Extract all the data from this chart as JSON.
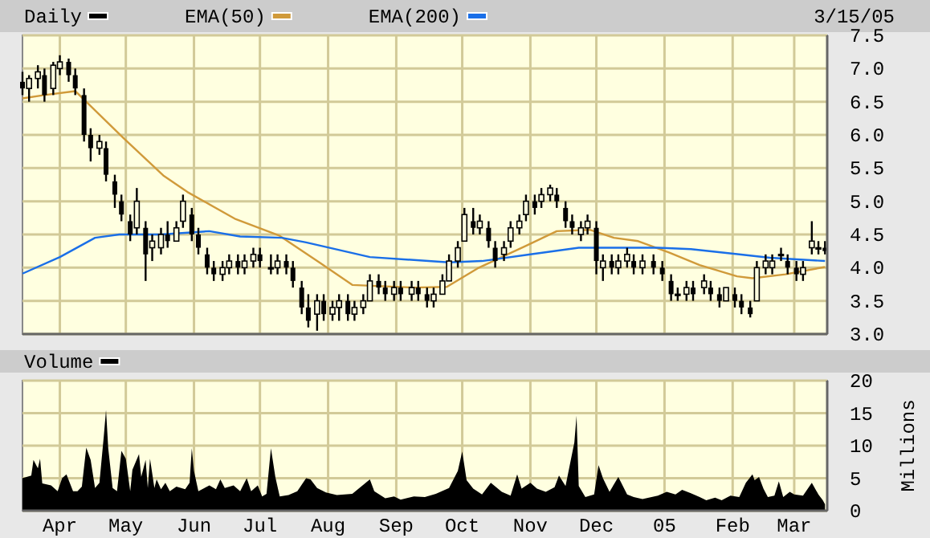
{
  "chart_data": [
    {
      "type": "candlestick",
      "xlim": [
        "2004-03-15",
        "2005-03-16"
      ],
      "xticks": [
        "2004-04-01",
        "2004-05-01",
        "2004-06-01",
        "2004-07-01",
        "2004-08-01",
        "2004-09-01",
        "2004-10-01",
        "2004-11-01",
        "2004-12-01",
        "2005-01-01",
        "2005-02-01",
        "2005-03-01"
      ],
      "ylim": [
        3,
        7.5
      ],
      "yticks": [
        {
          "value": 3,
          "label": "3.0"
        },
        {
          "value": 3.5,
          "label": "3.5"
        },
        {
          "value": 4,
          "label": "4.0"
        },
        {
          "value": 4.5,
          "label": "4.5"
        },
        {
          "value": 5,
          "label": "5.0"
        },
        {
          "value": 5.5,
          "label": "5.5"
        },
        {
          "value": 6,
          "label": "6.0"
        },
        {
          "value": 6.5,
          "label": "6.5"
        },
        {
          "value": 7,
          "label": "7.0"
        },
        {
          "value": 7.5,
          "label": "7.5"
        }
      ],
      "tick_labels": "y",
      "grid": true,
      "legend": "top",
      "annotations": [
        "3/15/05"
      ],
      "series": [
        {
          "type": "line",
          "name": "EMA(50)",
          "color": "#d09a3a",
          "x": [
            "2004-03-15",
            "2004-03-25",
            "2004-04-08",
            "2004-04-30",
            "2004-05-18",
            "2004-05-29",
            "2004-06-20",
            "2004-07-10",
            "2004-07-28",
            "2004-08-12",
            "2004-09-09",
            "2004-09-24",
            "2004-10-08",
            "2004-10-30",
            "2004-11-13",
            "2004-11-28",
            "2004-12-09",
            "2004-12-20",
            "2005-01-03",
            "2005-01-17",
            "2005-02-03",
            "2005-02-10",
            "2005-02-25",
            "2005-03-15"
          ],
          "values": [
            6.55,
            6.6,
            6.66,
            5.95,
            5.39,
            5.14,
            4.73,
            4.48,
            4.08,
            3.74,
            3.7,
            3.71,
            3.99,
            4.33,
            4.55,
            4.57,
            4.45,
            4.4,
            4.23,
            4.04,
            3.87,
            3.84,
            3.9,
            4.01
          ]
        },
        {
          "type": "line",
          "name": "EMA(200)",
          "color": "#1a6fe8",
          "x": [
            "2004-03-15",
            "2004-04-01",
            "2004-04-17",
            "2004-04-28",
            "2004-05-17",
            "2004-06-08",
            "2004-06-22",
            "2004-07-11",
            "2004-07-22",
            "2004-08-20",
            "2004-09-25",
            "2004-10-10",
            "2004-11-01",
            "2004-11-23",
            "2004-12-15",
            "2004-12-29",
            "2005-01-13",
            "2005-02-04",
            "2005-02-18",
            "2005-03-15"
          ],
          "values": [
            3.91,
            4.16,
            4.45,
            4.5,
            4.5,
            4.55,
            4.47,
            4.45,
            4.38,
            4.16,
            4.08,
            4.1,
            4.2,
            4.3,
            4.3,
            4.3,
            4.28,
            4.2,
            4.15,
            4.1
          ]
        },
        {
          "name": "Daily",
          "color": "#000000",
          "x": [
            "2004-03-15",
            "2004-03-18",
            "2004-03-22",
            "2004-03-25",
            "2004-03-29",
            "2004-04-01",
            "2004-04-05",
            "2004-04-08",
            "2004-04-12",
            "2004-04-15",
            "2004-04-19",
            "2004-04-22",
            "2004-04-26",
            "2004-04-29",
            "2004-05-03",
            "2004-05-06",
            "2004-05-10",
            "2004-05-13",
            "2004-05-17",
            "2004-05-20",
            "2004-05-24",
            "2004-05-27",
            "2004-05-31",
            "2004-06-03",
            "2004-06-07",
            "2004-06-10",
            "2004-06-14",
            "2004-06-17",
            "2004-06-21",
            "2004-06-24",
            "2004-06-28",
            "2004-07-01",
            "2004-07-06",
            "2004-07-09",
            "2004-07-13",
            "2004-07-16",
            "2004-07-20",
            "2004-07-23",
            "2004-07-27",
            "2004-07-30",
            "2004-08-03",
            "2004-08-06",
            "2004-08-10",
            "2004-08-13",
            "2004-08-17",
            "2004-08-20",
            "2004-08-24",
            "2004-08-27",
            "2004-08-31",
            "2004-09-03",
            "2004-09-08",
            "2004-09-11",
            "2004-09-15",
            "2004-09-18",
            "2004-09-22",
            "2004-09-25",
            "2004-09-29",
            "2004-10-02",
            "2004-10-06",
            "2004-10-09",
            "2004-10-13",
            "2004-10-16",
            "2004-10-20",
            "2004-10-23",
            "2004-10-27",
            "2004-10-30",
            "2004-11-03",
            "2004-11-06",
            "2004-11-10",
            "2004-11-13",
            "2004-11-17",
            "2004-11-20",
            "2004-11-24",
            "2004-11-27",
            "2004-12-01",
            "2004-12-04",
            "2004-12-08",
            "2004-12-11",
            "2004-12-15",
            "2004-12-18",
            "2004-12-22",
            "2004-12-27",
            "2004-12-31",
            "2005-01-04",
            "2005-01-07",
            "2005-01-11",
            "2005-01-14",
            "2005-01-19",
            "2005-01-22",
            "2005-01-26",
            "2005-01-29",
            "2005-02-02",
            "2005-02-05",
            "2005-02-09",
            "2005-02-12",
            "2005-02-16",
            "2005-02-19",
            "2005-02-23",
            "2005-02-26",
            "2005-03-02",
            "2005-03-05",
            "2005-03-09",
            "2005-03-12",
            "2005-03-15"
          ],
          "ohlc": [
            [
              6.8,
              6.95,
              6.6,
              6.7
            ],
            [
              6.7,
              6.9,
              6.5,
              6.85
            ],
            [
              6.85,
              7.05,
              6.7,
              6.95
            ],
            [
              6.9,
              7.0,
              6.5,
              6.6
            ],
            [
              6.7,
              7.1,
              6.6,
              7.05
            ],
            [
              7.0,
              7.2,
              6.9,
              7.1
            ],
            [
              7.1,
              7.15,
              6.8,
              6.9
            ],
            [
              6.9,
              7.0,
              6.6,
              6.7
            ],
            [
              6.6,
              6.7,
              5.9,
              6.0
            ],
            [
              6.0,
              6.1,
              5.6,
              5.8
            ],
            [
              5.8,
              6.0,
              5.7,
              5.9
            ],
            [
              5.8,
              5.9,
              5.3,
              5.4
            ],
            [
              5.3,
              5.4,
              4.9,
              5.1
            ],
            [
              5.0,
              5.1,
              4.7,
              4.8
            ],
            [
              4.7,
              4.8,
              4.4,
              4.5
            ],
            [
              4.6,
              5.2,
              4.5,
              5.0
            ],
            [
              4.6,
              4.7,
              3.8,
              4.2
            ],
            [
              4.3,
              4.5,
              4.1,
              4.4
            ],
            [
              4.3,
              4.6,
              4.2,
              4.5
            ],
            [
              4.5,
              4.7,
              4.3,
              4.4
            ],
            [
              4.4,
              4.7,
              4.4,
              4.6
            ],
            [
              4.7,
              5.1,
              4.6,
              5.0
            ],
            [
              4.8,
              4.9,
              4.4,
              4.5
            ],
            [
              4.5,
              4.6,
              4.2,
              4.3
            ],
            [
              4.2,
              4.3,
              3.9,
              4.0
            ],
            [
              4.0,
              4.1,
              3.8,
              3.9
            ],
            [
              3.9,
              4.1,
              3.8,
              4.0
            ],
            [
              4.0,
              4.2,
              3.9,
              4.1
            ],
            [
              4.1,
              4.2,
              3.9,
              4.0
            ],
            [
              4.0,
              4.2,
              3.9,
              4.1
            ],
            [
              4.1,
              4.3,
              4.0,
              4.2
            ],
            [
              4.2,
              4.3,
              4.0,
              4.1
            ],
            [
              4.0,
              4.2,
              3.9,
              4.0
            ],
            [
              4.0,
              4.2,
              3.9,
              4.1
            ],
            [
              4.1,
              4.2,
              3.9,
              4.0
            ],
            [
              4.0,
              4.1,
              3.7,
              3.8
            ],
            [
              3.7,
              3.8,
              3.3,
              3.4
            ],
            [
              3.4,
              3.6,
              3.1,
              3.2
            ],
            [
              3.3,
              3.6,
              3.05,
              3.5
            ],
            [
              3.5,
              3.6,
              3.2,
              3.3
            ],
            [
              3.3,
              3.5,
              3.2,
              3.4
            ],
            [
              3.4,
              3.6,
              3.2,
              3.5
            ],
            [
              3.5,
              3.6,
              3.2,
              3.3
            ],
            [
              3.3,
              3.5,
              3.2,
              3.4
            ],
            [
              3.4,
              3.6,
              3.3,
              3.5
            ],
            [
              3.5,
              3.9,
              3.5,
              3.8
            ],
            [
              3.8,
              3.9,
              3.6,
              3.7
            ],
            [
              3.7,
              3.8,
              3.5,
              3.6
            ],
            [
              3.6,
              3.8,
              3.5,
              3.7
            ],
            [
              3.7,
              3.8,
              3.5,
              3.6
            ],
            [
              3.6,
              3.8,
              3.5,
              3.7
            ],
            [
              3.7,
              3.8,
              3.5,
              3.6
            ],
            [
              3.6,
              3.7,
              3.4,
              3.5
            ],
            [
              3.5,
              3.7,
              3.4,
              3.6
            ],
            [
              3.6,
              3.9,
              3.6,
              3.8
            ],
            [
              3.8,
              4.2,
              3.8,
              4.1
            ],
            [
              4.1,
              4.4,
              4.0,
              4.3
            ],
            [
              4.4,
              4.9,
              4.4,
              4.8
            ],
            [
              4.7,
              4.9,
              4.5,
              4.6
            ],
            [
              4.6,
              4.8,
              4.5,
              4.7
            ],
            [
              4.6,
              4.7,
              4.3,
              4.4
            ],
            [
              4.3,
              4.4,
              4.0,
              4.1
            ],
            [
              4.2,
              4.4,
              4.1,
              4.3
            ],
            [
              4.4,
              4.7,
              4.3,
              4.6
            ],
            [
              4.6,
              4.8,
              4.5,
              4.7
            ],
            [
              4.8,
              5.1,
              4.7,
              5.0
            ],
            [
              5.0,
              5.1,
              4.8,
              4.9
            ],
            [
              5.0,
              5.2,
              4.9,
              5.1
            ],
            [
              5.1,
              5.25,
              5.0,
              5.2
            ],
            [
              5.1,
              5.2,
              4.9,
              5.0
            ],
            [
              4.9,
              5.0,
              4.6,
              4.7
            ],
            [
              4.7,
              4.8,
              4.5,
              4.6
            ],
            [
              4.5,
              4.7,
              4.4,
              4.6
            ],
            [
              4.6,
              4.8,
              4.5,
              4.7
            ],
            [
              4.6,
              4.7,
              3.9,
              4.1
            ],
            [
              4.0,
              4.2,
              3.8,
              4.1
            ],
            [
              4.1,
              4.2,
              3.9,
              4.0
            ],
            [
              4.0,
              4.2,
              3.9,
              4.1
            ],
            [
              4.1,
              4.3,
              4.0,
              4.2
            ],
            [
              4.1,
              4.2,
              3.9,
              4.0
            ],
            [
              4.0,
              4.2,
              3.9,
              4.1
            ],
            [
              4.1,
              4.2,
              3.9,
              4.0
            ],
            [
              4.0,
              4.1,
              3.8,
              3.9
            ],
            [
              3.8,
              3.9,
              3.5,
              3.6
            ],
            [
              3.6,
              3.7,
              3.5,
              3.6
            ],
            [
              3.6,
              3.8,
              3.5,
              3.7
            ],
            [
              3.7,
              3.8,
              3.5,
              3.6
            ],
            [
              3.7,
              3.9,
              3.6,
              3.8
            ],
            [
              3.7,
              3.8,
              3.5,
              3.6
            ],
            [
              3.6,
              3.7,
              3.4,
              3.5
            ],
            [
              3.5,
              3.7,
              3.5,
              3.7
            ],
            [
              3.6,
              3.7,
              3.4,
              3.5
            ],
            [
              3.5,
              3.6,
              3.3,
              3.4
            ],
            [
              3.4,
              3.5,
              3.25,
              3.3
            ],
            [
              3.5,
              4.1,
              3.5,
              4.0
            ],
            [
              4.0,
              4.2,
              3.9,
              4.1
            ],
            [
              4.0,
              4.2,
              3.9,
              4.1
            ],
            [
              4.2,
              4.3,
              4.1,
              4.2
            ],
            [
              4.1,
              4.2,
              3.9,
              4.0
            ],
            [
              4.0,
              4.1,
              3.8,
              3.9
            ],
            [
              3.9,
              4.1,
              3.8,
              4.0
            ],
            [
              4.3,
              4.7,
              4.2,
              4.4
            ],
            [
              4.3,
              4.4,
              4.2,
              4.3
            ],
            [
              4.3,
              4.4,
              4.2,
              4.25
            ]
          ]
        }
      ]
    },
    {
      "type": "area",
      "xlim": [
        "2004-03-15",
        "2005-03-16"
      ],
      "xticks": [
        {
          "value": "2004-04-01",
          "label": "Apr"
        },
        {
          "value": "2004-05-01",
          "label": "May"
        },
        {
          "value": "2004-06-01",
          "label": "Jun"
        },
        {
          "value": "2004-07-01",
          "label": "Jul"
        },
        {
          "value": "2004-08-01",
          "label": "Aug"
        },
        {
          "value": "2004-09-01",
          "label": "Sep"
        },
        {
          "value": "2004-10-01",
          "label": "Oct"
        },
        {
          "value": "2004-11-01",
          "label": "Nov"
        },
        {
          "value": "2004-12-01",
          "label": "Dec"
        },
        {
          "value": "2005-01-01",
          "label": "05"
        },
        {
          "value": "2005-02-01",
          "label": "Feb"
        },
        {
          "value": "2005-03-01",
          "label": "Mar"
        }
      ],
      "ylim": [
        0,
        20
      ],
      "yticks": [
        0,
        5,
        10,
        15,
        20
      ],
      "ylabel": "Millions",
      "grid": true,
      "legend": "top",
      "series": [
        {
          "name": "Volume",
          "color": "#000000",
          "x": [
            "2004-03-15",
            "2004-03-19",
            "2004-03-20",
            "2004-03-22",
            "2004-03-23",
            "2004-03-24",
            "2004-03-28",
            "2004-03-31",
            "2004-04-02",
            "2004-04-04",
            "2004-04-07",
            "2004-04-09",
            "2004-04-11",
            "2004-04-13",
            "2004-04-15",
            "2004-04-17",
            "2004-04-19",
            "2004-04-21",
            "2004-04-22",
            "2004-04-23",
            "2004-04-25",
            "2004-04-27",
            "2004-04-29",
            "2004-05-01",
            "2004-05-03",
            "2004-05-04",
            "2004-05-07",
            "2004-05-08",
            "2004-05-10",
            "2004-05-11",
            "2004-05-12",
            "2004-05-14",
            "2004-05-15",
            "2004-05-17",
            "2004-05-19",
            "2004-05-21",
            "2004-05-24",
            "2004-05-28",
            "2004-05-30",
            "2004-05-31",
            "2004-06-01",
            "2004-06-03",
            "2004-06-08",
            "2004-06-11",
            "2004-06-13",
            "2004-06-15",
            "2004-06-19",
            "2004-06-22",
            "2004-06-25",
            "2004-06-27",
            "2004-06-30",
            "2004-07-02",
            "2004-07-04",
            "2004-07-06",
            "2004-07-08",
            "2004-07-10",
            "2004-07-14",
            "2004-07-18",
            "2004-07-22",
            "2004-07-24",
            "2004-07-27",
            "2004-07-31",
            "2004-08-05",
            "2004-08-12",
            "2004-08-20",
            "2004-08-22",
            "2004-08-27",
            "2004-08-31",
            "2004-09-03",
            "2004-09-09",
            "2004-09-14",
            "2004-09-19",
            "2004-09-25",
            "2004-09-29",
            "2004-10-01",
            "2004-10-03",
            "2004-10-06",
            "2004-10-10",
            "2004-10-14",
            "2004-10-19",
            "2004-10-23",
            "2004-10-26",
            "2004-10-28",
            "2004-11-01",
            "2004-11-04",
            "2004-11-08",
            "2004-11-12",
            "2004-11-14",
            "2004-11-17",
            "2004-11-21",
            "2004-11-22",
            "2004-11-23",
            "2004-11-26",
            "2004-11-30",
            "2004-12-02",
            "2004-12-04",
            "2004-12-07",
            "2004-12-11",
            "2004-12-15",
            "2004-12-18",
            "2004-12-22",
            "2004-12-29",
            "2005-01-02",
            "2005-01-06",
            "2005-01-09",
            "2005-01-13",
            "2005-01-17",
            "2005-01-20",
            "2005-01-24",
            "2005-01-27",
            "2005-01-31",
            "2005-02-04",
            "2005-02-07",
            "2005-02-10",
            "2005-02-11",
            "2005-02-13",
            "2005-02-15",
            "2005-02-17",
            "2005-02-20",
            "2005-02-22",
            "2005-02-24",
            "2005-02-27",
            "2005-03-01",
            "2005-03-05",
            "2005-03-09",
            "2005-03-12",
            "2005-03-14",
            "2005-03-15"
          ],
          "values": [
            5.0,
            5.4,
            7.8,
            6.5,
            8.0,
            4.2,
            3.9,
            3.0,
            5.0,
            5.6,
            3.0,
            3.0,
            3.7,
            9.7,
            7.8,
            3.5,
            4.3,
            11.5,
            15.5,
            9.6,
            3.5,
            3.0,
            9.2,
            8.0,
            3.0,
            6.3,
            8.7,
            5.2,
            7.8,
            3.5,
            8.0,
            3.5,
            4.8,
            3.3,
            4.3,
            3.0,
            3.7,
            3.3,
            4.3,
            9.6,
            6.1,
            3.0,
            3.9,
            3.3,
            4.8,
            3.5,
            3.9,
            3.0,
            5.0,
            3.0,
            3.9,
            2.2,
            2.6,
            9.6,
            5.2,
            2.2,
            2.4,
            3.0,
            5.0,
            4.8,
            3.5,
            2.8,
            2.4,
            2.6,
            4.8,
            3.0,
            1.9,
            2.2,
            1.7,
            2.2,
            2.1,
            2.6,
            3.5,
            6.1,
            9.1,
            4.7,
            3.4,
            2.5,
            4.3,
            2.9,
            2.3,
            5.6,
            3.4,
            4.3,
            3.4,
            2.9,
            3.6,
            5.4,
            3.8,
            10.5,
            14.6,
            3.8,
            2.1,
            2.5,
            7.0,
            5.0,
            2.9,
            5.2,
            2.5,
            2.1,
            1.8,
            2.3,
            2.9,
            2.5,
            3.2,
            2.7,
            2.1,
            1.6,
            2.0,
            1.6,
            2.3,
            2.1,
            4.3,
            5.6,
            4.7,
            5.2,
            3.4,
            2.1,
            2.3,
            4.5,
            2.1,
            2.9,
            2.5,
            2.3,
            4.3,
            2.5,
            1.6,
            1.0
          ]
        }
      ]
    }
  ]
}
